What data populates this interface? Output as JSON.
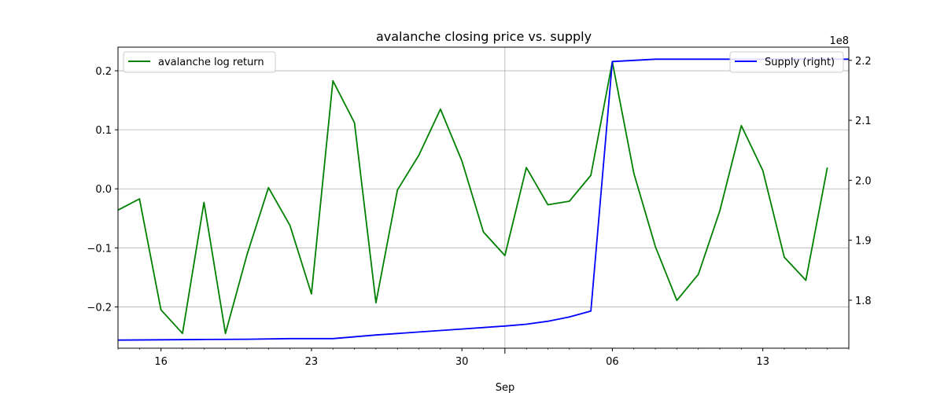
{
  "chart_data": {
    "type": "line",
    "title": "avalanche closing price vs. supply",
    "xlabel": "Sep",
    "x_tick_labels": [
      "16",
      "23",
      "30",
      "06",
      "13"
    ],
    "y_left": {
      "ylim": [
        -0.27,
        0.24
      ],
      "ticks": [
        -0.2,
        -0.1,
        0.0,
        0.1,
        0.2
      ],
      "tick_labels": [
        "−0.2",
        "−0.1",
        "0.0",
        "0.1",
        "0.2"
      ]
    },
    "y_right": {
      "ylim": [
        172000000.0,
        222200000.0
      ],
      "ticks": [
        180000000.0,
        190000000.0,
        200000000.0,
        210000000.0,
        220000000.0
      ],
      "tick_labels": [
        "1.8",
        "1.9",
        "2.0",
        "2.1",
        "2.2"
      ],
      "offset_text": "1e8"
    },
    "grid": true,
    "x_range": [
      "2021-08-14",
      "2021-09-17"
    ],
    "legend_left_position": "top-left",
    "legend_right_position": "top-right",
    "series": [
      {
        "name": "avalanche log return",
        "axis": "left",
        "color": "#008000",
        "x": [
          "2021-08-14",
          "2021-08-15",
          "2021-08-16",
          "2021-08-17",
          "2021-08-18",
          "2021-08-19",
          "2021-08-20",
          "2021-08-21",
          "2021-08-22",
          "2021-08-23",
          "2021-08-24",
          "2021-08-25",
          "2021-08-26",
          "2021-08-27",
          "2021-08-28",
          "2021-08-29",
          "2021-08-30",
          "2021-08-31",
          "2021-09-01",
          "2021-09-02",
          "2021-09-03",
          "2021-09-04",
          "2021-09-05",
          "2021-09-06",
          "2021-09-07",
          "2021-09-08",
          "2021-09-09",
          "2021-09-10",
          "2021-09-11",
          "2021-09-12",
          "2021-09-13",
          "2021-09-14",
          "2021-09-15",
          "2021-09-16"
        ],
        "values": [
          -0.036,
          -0.017,
          -0.205,
          -0.245,
          -0.023,
          -0.245,
          -0.112,
          0.002,
          -0.062,
          -0.178,
          0.183,
          0.112,
          -0.193,
          -0.002,
          0.057,
          0.135,
          0.047,
          -0.073,
          -0.113,
          0.036,
          -0.027,
          -0.021,
          0.023,
          0.215,
          0.026,
          -0.098,
          -0.189,
          -0.145,
          -0.037,
          0.107,
          0.031,
          -0.116,
          -0.155,
          0.036
        ]
      },
      {
        "name": "Supply (right)",
        "axis": "right",
        "color": "#0000ff",
        "x": [
          "2021-08-14",
          "2021-08-16",
          "2021-08-18",
          "2021-08-20",
          "2021-08-22",
          "2021-08-24",
          "2021-08-26",
          "2021-08-28",
          "2021-08-30",
          "2021-09-01",
          "2021-09-02",
          "2021-09-03",
          "2021-09-04",
          "2021-09-05",
          "2021-09-06",
          "2021-09-08",
          "2021-09-10",
          "2021-09-12",
          "2021-09-14",
          "2021-09-16",
          "2021-09-17"
        ],
        "values": [
          173350000.0,
          173400000.0,
          173450000.0,
          173500000.0,
          173600000.0,
          173600000.0,
          174200000.0,
          174700000.0,
          175200000.0,
          175700000.0,
          176000000.0,
          176500000.0,
          177200000.0,
          178200000.0,
          219800000.0,
          220200000.0,
          220200000.0,
          220200000.0,
          220200000.0,
          220200000.0,
          220200000.0
        ]
      }
    ]
  }
}
